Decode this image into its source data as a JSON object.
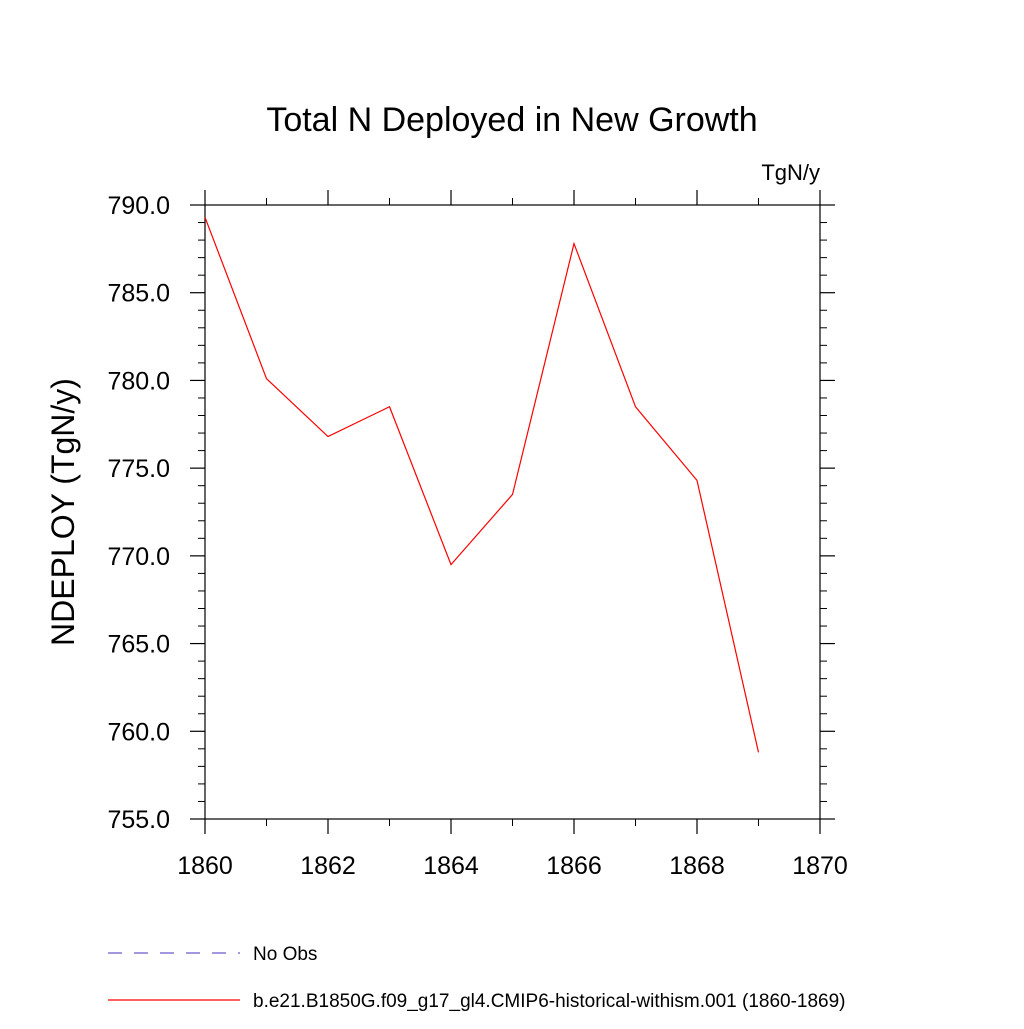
{
  "chart_data": {
    "type": "line",
    "title": "Total N Deployed in New Growth",
    "units_label": "TgN/y",
    "ylabel": "NDEPLOY  (TgN/y)",
    "xlabel": "",
    "xlim": [
      1860,
      1870
    ],
    "ylim": [
      755.0,
      790.0
    ],
    "x_ticks": [
      1860,
      1862,
      1864,
      1866,
      1868,
      1870
    ],
    "x_tick_labels": [
      "1860",
      "1862",
      "1864",
      "1866",
      "1868",
      "1870"
    ],
    "y_ticks": [
      755.0,
      760.0,
      765.0,
      770.0,
      775.0,
      780.0,
      785.0,
      790.0
    ],
    "y_tick_labels": [
      "755.0",
      "760.0",
      "765.0",
      "770.0",
      "775.0",
      "780.0",
      "785.0",
      "790.0"
    ],
    "x_minor_step": 1,
    "y_minor_step": 1,
    "grid": false,
    "legend_position": "bottom-left",
    "series": [
      {
        "name": "b.e21.B1850G.f09_g17_gl4.CMIP6-historical-withism.001 (1860-1869)",
        "color": "#ff0000",
        "dash": "solid",
        "x": [
          1860,
          1861,
          1862,
          1863,
          1864,
          1865,
          1866,
          1867,
          1868,
          1869
        ],
        "values": [
          789.3,
          780.1,
          776.8,
          778.5,
          769.5,
          773.5,
          787.8,
          778.5,
          774.3,
          758.8
        ]
      }
    ],
    "legend": [
      {
        "label": "No Obs",
        "color": "#6a5acd",
        "dash": "dashed"
      },
      {
        "label": "b.e21.B1850G.f09_g17_gl4.CMIP6-historical-withism.001 (1860-1869)",
        "color": "#ff0000",
        "dash": "solid"
      }
    ]
  }
}
